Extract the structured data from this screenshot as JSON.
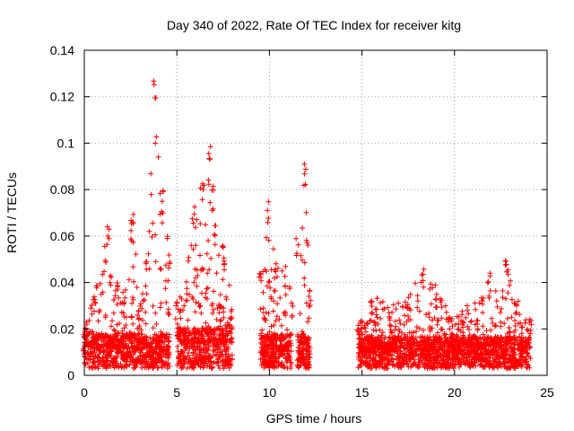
{
  "chart_data": {
    "type": "scatter",
    "title": "Day 340 of 2022, Rate Of TEC Index for receiver kitg",
    "xlabel": "GPS time / hours",
    "ylabel": "ROTI / TECUs",
    "xlim": [
      0,
      25
    ],
    "ylim": [
      0,
      0.14
    ],
    "xticks": [
      0,
      5,
      10,
      15,
      20,
      25
    ],
    "xtick_labels": [
      "0",
      "5",
      "10",
      "15",
      "20",
      "25"
    ],
    "yticks": [
      0,
      0.02,
      0.04,
      0.06,
      0.08,
      0.1,
      0.12,
      0.14
    ],
    "ytick_labels": [
      "0",
      "0.02",
      "0.04",
      "0.06",
      "0.08",
      "0.1",
      "0.12",
      "0.14"
    ],
    "grid": true,
    "marker": "plus",
    "marker_color": "#ff0000",
    "series": [
      {
        "name": "ROTI",
        "segments": [
          {
            "x_start": 0.0,
            "x_end": 4.6,
            "baseline": 0.012,
            "envelope": [
              [
                0.0,
                0.02
              ],
              [
                0.6,
                0.036
              ],
              [
                1.3,
                0.066
              ],
              [
                1.7,
                0.04
              ],
              [
                2.1,
                0.036
              ],
              [
                2.6,
                0.074
              ],
              [
                3.0,
                0.03
              ],
              [
                3.4,
                0.05
              ],
              [
                3.8,
                0.127
              ],
              [
                4.2,
                0.08
              ],
              [
                4.6,
                0.055
              ]
            ]
          },
          {
            "x_start": 5.0,
            "x_end": 8.0,
            "baseline": 0.014,
            "envelope": [
              [
                5.0,
                0.032
              ],
              [
                5.5,
                0.04
              ],
              [
                5.9,
                0.075
              ],
              [
                6.4,
                0.085
              ],
              [
                6.8,
                0.102
              ],
              [
                7.1,
                0.065
              ],
              [
                7.5,
                0.058
              ],
              [
                8.0,
                0.03
              ]
            ]
          },
          {
            "x_start": 9.5,
            "x_end": 11.2,
            "baseline": 0.012,
            "envelope": [
              [
                9.5,
                0.045
              ],
              [
                9.9,
                0.075
              ],
              [
                10.3,
                0.05
              ],
              [
                10.8,
                0.047
              ],
              [
                11.2,
                0.035
              ]
            ]
          },
          {
            "x_start": 11.5,
            "x_end": 12.2,
            "baseline": 0.012,
            "envelope": [
              [
                11.5,
                0.06
              ],
              [
                11.9,
                0.091
              ],
              [
                12.2,
                0.04
              ]
            ]
          },
          {
            "x_start": 14.8,
            "x_end": 24.1,
            "baseline": 0.011,
            "envelope": [
              [
                14.8,
                0.022
              ],
              [
                15.5,
                0.035
              ],
              [
                16.5,
                0.03
              ],
              [
                17.5,
                0.035
              ],
              [
                18.3,
                0.047
              ],
              [
                19.0,
                0.039
              ],
              [
                19.8,
                0.025
              ],
              [
                20.7,
                0.03
              ],
              [
                21.5,
                0.035
              ],
              [
                21.9,
                0.045
              ],
              [
                22.5,
                0.03
              ],
              [
                22.8,
                0.053
              ],
              [
                23.3,
                0.035
              ],
              [
                24.1,
                0.025
              ]
            ]
          }
        ]
      }
    ]
  }
}
